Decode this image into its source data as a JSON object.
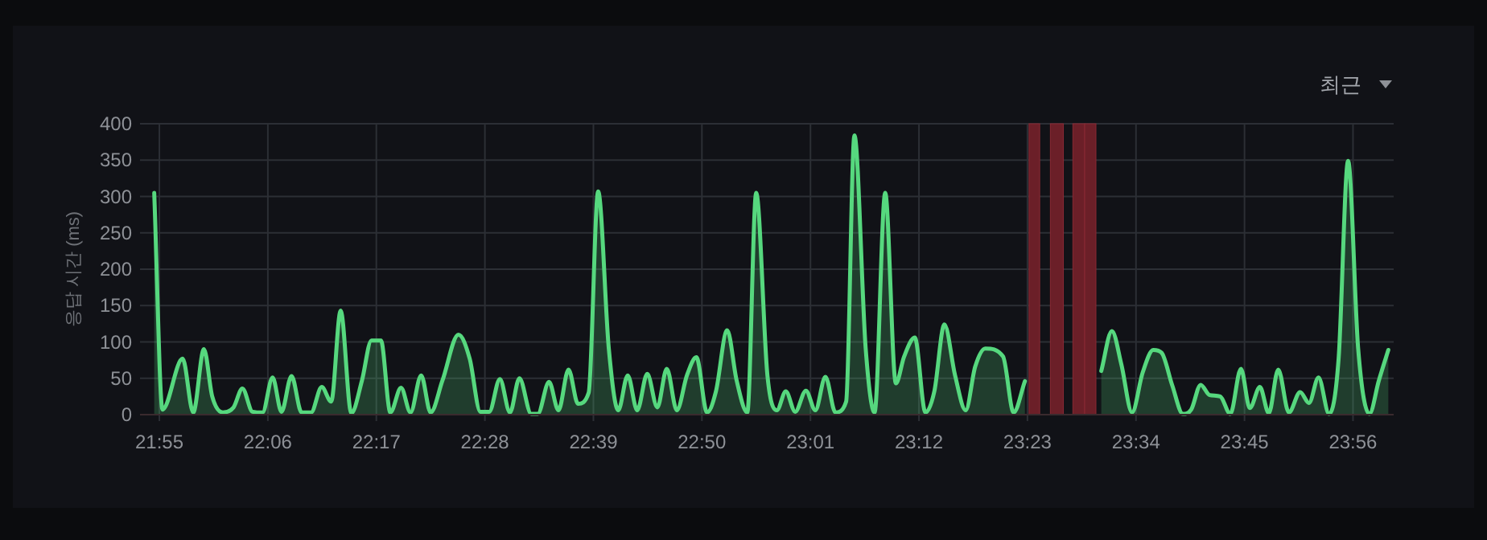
{
  "chart_data": {
    "type": "area",
    "ylabel": "응답 시간 (ms)",
    "annotations": [
      "최근"
    ],
    "xlim": [
      21.884,
      24.002
    ],
    "ylim": [
      0,
      400
    ],
    "xticks": [
      {
        "value": 21.9167,
        "label": "21:55"
      },
      {
        "value": 22.1,
        "label": "22:06"
      },
      {
        "value": 22.2833,
        "label": "22:17"
      },
      {
        "value": 22.4667,
        "label": "22:28"
      },
      {
        "value": 22.65,
        "label": "22:39"
      },
      {
        "value": 22.8333,
        "label": "22:50"
      },
      {
        "value": 23.0167,
        "label": "23:01"
      },
      {
        "value": 23.2,
        "label": "23:12"
      },
      {
        "value": 23.3833,
        "label": "23:23"
      },
      {
        "value": 23.5667,
        "label": "23:34"
      },
      {
        "value": 23.75,
        "label": "23:45"
      },
      {
        "value": 23.9333,
        "label": "23:56"
      }
    ],
    "yticks": [
      0,
      50,
      100,
      150,
      200,
      250,
      300,
      350,
      400
    ],
    "grid": true,
    "marker": "none",
    "line_style": "solid",
    "series": [
      {
        "color": "#56d87e",
        "x": [
          21.908,
          21.922,
          21.956,
          21.974,
          21.992,
          22.006,
          22.024,
          22.042,
          22.057,
          22.074,
          22.091,
          22.108,
          22.123,
          22.14,
          22.157,
          22.173,
          22.191,
          22.207,
          22.223,
          22.241,
          22.259,
          22.275,
          22.291,
          22.307,
          22.325,
          22.341,
          22.359,
          22.375,
          22.395,
          22.422,
          22.441,
          22.459,
          22.474,
          22.492,
          22.509,
          22.525,
          22.545,
          22.556,
          22.575,
          22.591,
          22.608,
          22.624,
          22.642,
          22.658,
          22.676,
          22.692,
          22.708,
          22.724,
          22.741,
          22.758,
          22.774,
          22.791,
          22.808,
          22.824,
          22.842,
          22.857,
          22.876,
          22.892,
          22.91,
          22.925,
          22.944,
          22.96,
          22.975,
          22.991,
          23.009,
          23.025,
          23.042,
          23.059,
          23.077,
          23.091,
          23.11,
          23.125,
          23.143,
          23.161,
          23.175,
          23.193,
          23.211,
          23.226,
          23.243,
          23.261,
          23.279,
          23.295,
          23.312,
          23.342,
          23.36,
          23.379,
          23.508,
          23.526,
          23.542,
          23.56,
          23.578,
          23.596,
          23.61,
          23.628,
          23.646,
          23.66,
          23.676,
          23.691,
          23.709,
          23.726,
          23.744,
          23.759,
          23.776,
          23.791,
          23.807,
          23.825,
          23.844,
          23.859,
          23.875,
          23.893,
          23.909,
          23.925,
          23.942,
          23.961,
          23.977,
          23.993
        ],
        "values": [
          305,
          7,
          77,
          3,
          90,
          25,
          3,
          10,
          36,
          4,
          3,
          51,
          4,
          53,
          3,
          3,
          38,
          18,
          143,
          2,
          47,
          102,
          102,
          3,
          37,
          3,
          54,
          3,
          47,
          110,
          77,
          4,
          4,
          49,
          3,
          50,
          1,
          1,
          45,
          6,
          62,
          15,
          30,
          307,
          91,
          6,
          54,
          6,
          56,
          10,
          63,
          6,
          54,
          79,
          3,
          32,
          116,
          47,
          3,
          305,
          54,
          6,
          32,
          4,
          33,
          6,
          52,
          3,
          18,
          384,
          91,
          3,
          305,
          43,
          80,
          106,
          3,
          32,
          124,
          54,
          6,
          66,
          91,
          80,
          3,
          46,
          60,
          115,
          69,
          3,
          58,
          89,
          85,
          40,
          1,
          7,
          41,
          27,
          25,
          1,
          63,
          9,
          38,
          2,
          62,
          3,
          31,
          16,
          51,
          1,
          77,
          349,
          91,
          1,
          47,
          89
        ]
      }
    ],
    "bands": [
      {
        "axis": "x",
        "from": 23.386,
        "to": 23.404,
        "color": "#6b1f28"
      },
      {
        "axis": "x",
        "from": 23.422,
        "to": 23.444,
        "color": "#6b1f28"
      },
      {
        "axis": "x",
        "from": 23.46,
        "to": 23.48,
        "color": "#6b1f28"
      },
      {
        "axis": "x",
        "from": 23.48,
        "to": 23.499,
        "color": "#6b1f28"
      }
    ]
  }
}
